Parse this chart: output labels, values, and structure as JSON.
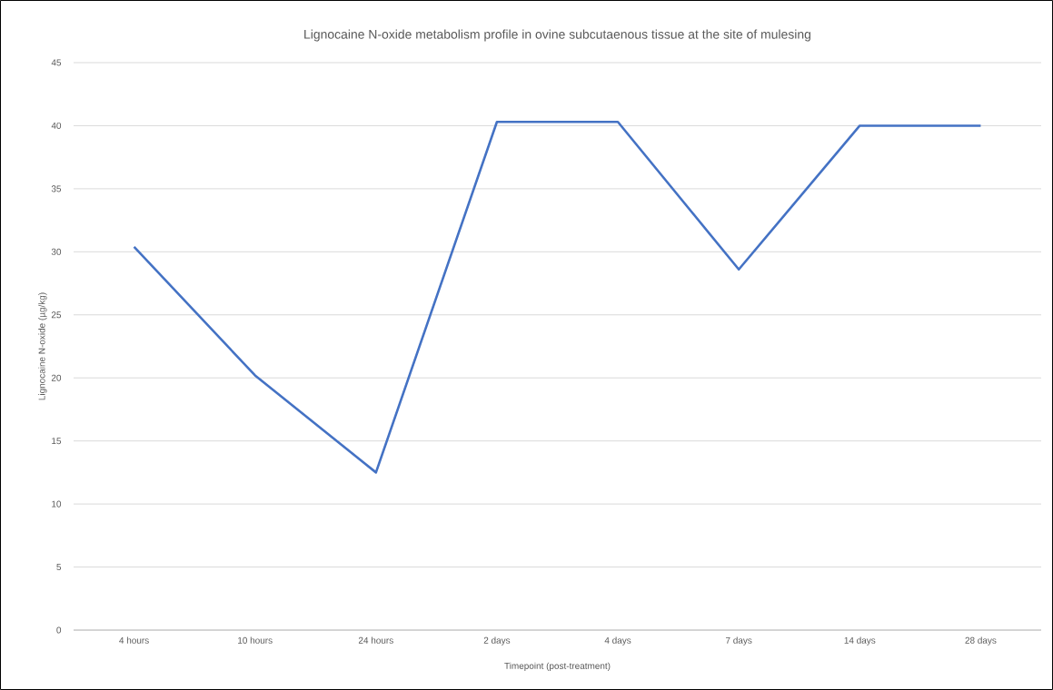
{
  "chart_data": {
    "type": "line",
    "title": "Lignocaine N-oxide metabolism profile in ovine subcutaenous tissue at the site of mulesing",
    "xlabel": "Timepoint (post-treatment)",
    "ylabel": "Lignocaine N-oxide (µg/kg)",
    "categories": [
      "4 hours",
      "10 hours",
      "24 hours",
      "2 days",
      "4 days",
      "7 days",
      "14 days",
      "28 days"
    ],
    "series": [
      {
        "color": "#4472c4",
        "values": [
          30.4,
          20.2,
          12.5,
          40.3,
          40.3,
          28.6,
          40.0,
          40.0
        ]
      }
    ],
    "ylim": [
      0,
      45
    ],
    "yticks": [
      0,
      5,
      10,
      15,
      20,
      25,
      30,
      35,
      40,
      45
    ],
    "grid": "y",
    "marker": "none",
    "line_style": "solid"
  }
}
